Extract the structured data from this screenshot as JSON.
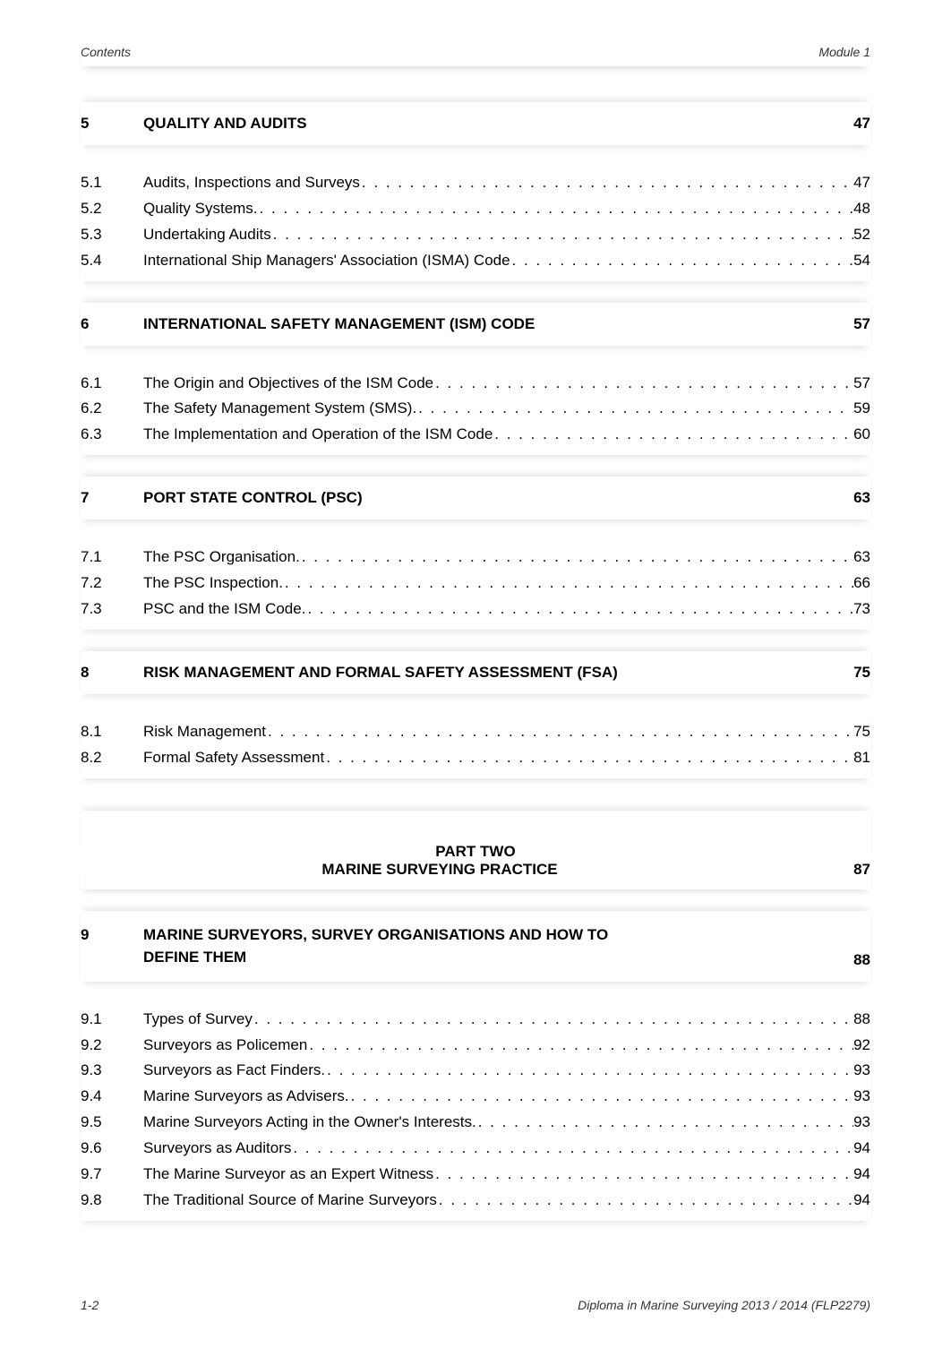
{
  "header": {
    "left": "Contents",
    "right": "Module 1"
  },
  "sections": [
    {
      "num": "5",
      "title": "QUALITY AND AUDITS",
      "page": "47",
      "entries": [
        {
          "num": "5.1",
          "label": "Audits, Inspections and Surveys",
          "page": "47"
        },
        {
          "num": "5.2",
          "label": "Quality Systems.",
          "page": "48"
        },
        {
          "num": "5.3",
          "label": "Undertaking Audits",
          "page": "52"
        },
        {
          "num": "5.4",
          "label": "International Ship Managers' Association (ISMA) Code",
          "page": "54"
        }
      ]
    },
    {
      "num": "6",
      "title": "INTERNATIONAL SAFETY MANAGEMENT (ISM) CODE",
      "page": "57",
      "entries": [
        {
          "num": "6.1",
          "label": "The Origin and Objectives of the ISM Code",
          "page": "57"
        },
        {
          "num": "6.2",
          "label": "The Safety Management System (SMS).",
          "page": "59"
        },
        {
          "num": "6.3",
          "label": "The Implementation and Operation of the ISM Code",
          "page": "60"
        }
      ]
    },
    {
      "num": "7",
      "title": "PORT STATE CONTROL (PSC)",
      "page": "63",
      "entries": [
        {
          "num": "7.1",
          "label": "The PSC Organisation.",
          "page": "63"
        },
        {
          "num": "7.2",
          "label": "The PSC Inspection.",
          "page": "66"
        },
        {
          "num": "7.3",
          "label": "PSC and the ISM Code.",
          "page": "73"
        }
      ]
    },
    {
      "num": "8",
      "title": "RISK MANAGEMENT AND FORMAL SAFETY ASSESSMENT (FSA)",
      "page": "75",
      "entries": [
        {
          "num": "8.1",
          "label": "Risk Management",
          "page": "75"
        },
        {
          "num": "8.2",
          "label": "Formal Safety Assessment",
          "page": "81"
        }
      ]
    }
  ],
  "part": {
    "title": "PART TWO",
    "subtitle": "MARINE SURVEYING PRACTICE",
    "page": "87"
  },
  "section9": {
    "num": "9",
    "titleLine1": "MARINE SURVEYORS, SURVEY ORGANISATIONS AND HOW TO",
    "titleLine2": "DEFINE THEM",
    "page": "88",
    "entries": [
      {
        "num": "9.1",
        "label": "Types of Survey",
        "page": "88"
      },
      {
        "num": "9.2",
        "label": "Surveyors as Policemen",
        "page": "92"
      },
      {
        "num": "9.3",
        "label": "Surveyors as Fact Finders.",
        "page": "93"
      },
      {
        "num": "9.4",
        "label": "Marine Surveyors as Advisers.",
        "page": "93"
      },
      {
        "num": "9.5",
        "label": "Marine Surveyors Acting in the Owner's Interests.",
        "page": "93"
      },
      {
        "num": "9.6",
        "label": "Surveyors as Auditors",
        "page": "94"
      },
      {
        "num": "9.7",
        "label": "The Marine Surveyor as an Expert Witness",
        "page": "94"
      },
      {
        "num": "9.8",
        "label": "The Traditional Source of Marine Surveyors",
        "page": "94"
      }
    ]
  },
  "footer": {
    "left": "1-2",
    "right": "Diploma in Marine Surveying 2013 / 2014 (FLP2279)"
  },
  "dots": ". . . . . . . . . . . . . . . . . . . . . . . . . . . . . . . . . . . . . . . . . . . . . . . . . . . . . . . . . . . . . . . . . . . . . . . . . . . . . . . ."
}
